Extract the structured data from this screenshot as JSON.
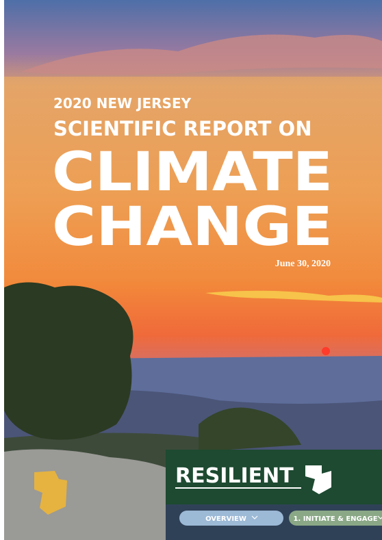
{
  "cover": {
    "kicker": "2020 NEW JERSEY",
    "subtitle": "SCIENTIFIC REPORT ON",
    "title_line1": "CLIMATE",
    "title_line2": "CHANGE",
    "date": "June 30, 2020"
  },
  "banner": {
    "logo": "RESILIENT",
    "nav": [
      "OVERVIEW",
      "1. INITIATE & ENGAGE"
    ]
  }
}
